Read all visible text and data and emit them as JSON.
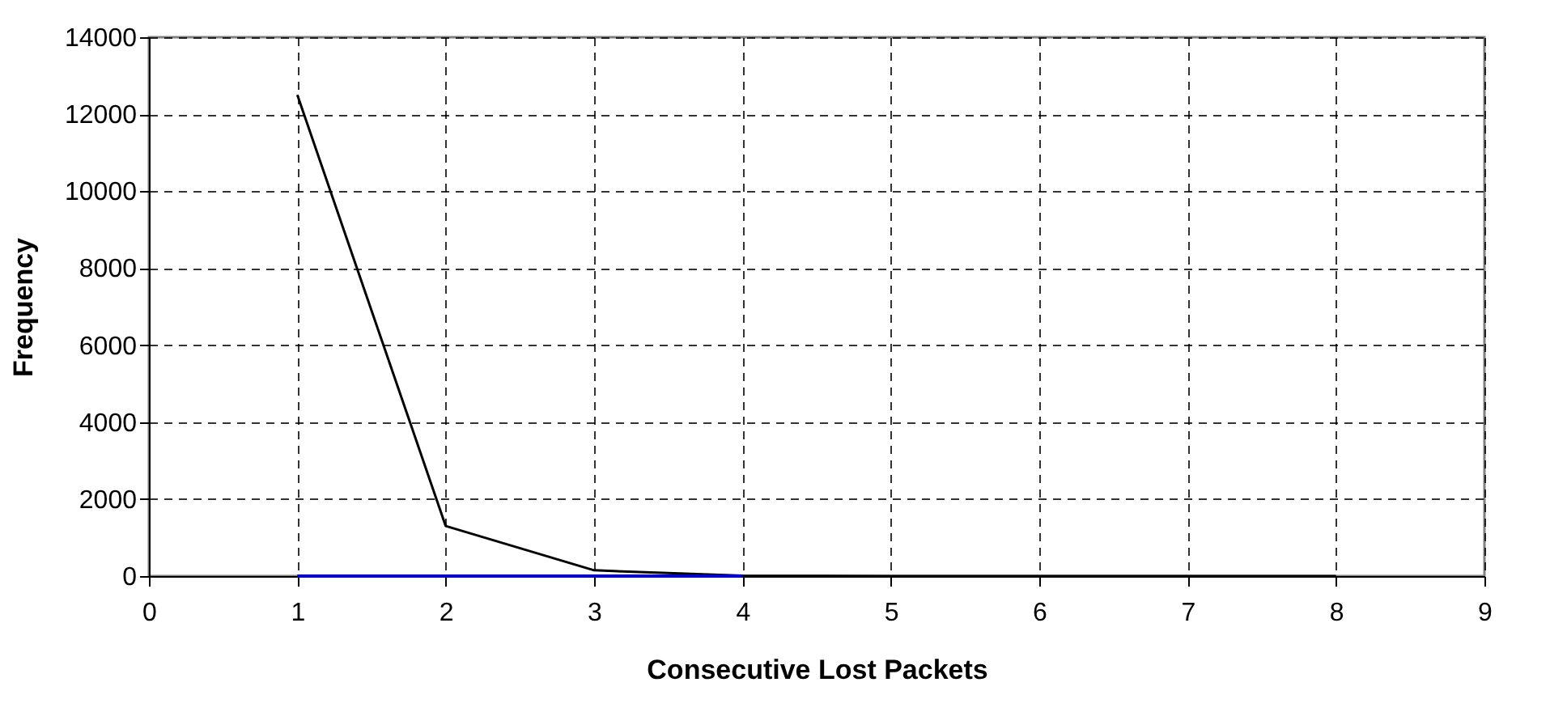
{
  "chart_data": {
    "type": "line",
    "xlabel": "Consecutive Lost Packets",
    "ylabel": "Frequency",
    "x": [
      1,
      2,
      3,
      4,
      5,
      6,
      7,
      8
    ],
    "series": [
      {
        "color": "#0000cc",
        "values": [
          0,
          0,
          0,
          0,
          null,
          null,
          null,
          null
        ]
      },
      {
        "color": "#000000",
        "values": [
          12500,
          1300,
          150,
          10,
          0,
          0,
          0,
          0
        ]
      }
    ],
    "xlim": [
      0,
      9
    ],
    "xticks": [
      0,
      1,
      2,
      3,
      4,
      5,
      6,
      7,
      8,
      9
    ],
    "ylim": [
      0,
      14000
    ],
    "yticks": [
      0,
      2000,
      4000,
      6000,
      8000,
      10000,
      12000,
      14000
    ],
    "grid": true,
    "marker": "none",
    "line_style": "solid"
  }
}
